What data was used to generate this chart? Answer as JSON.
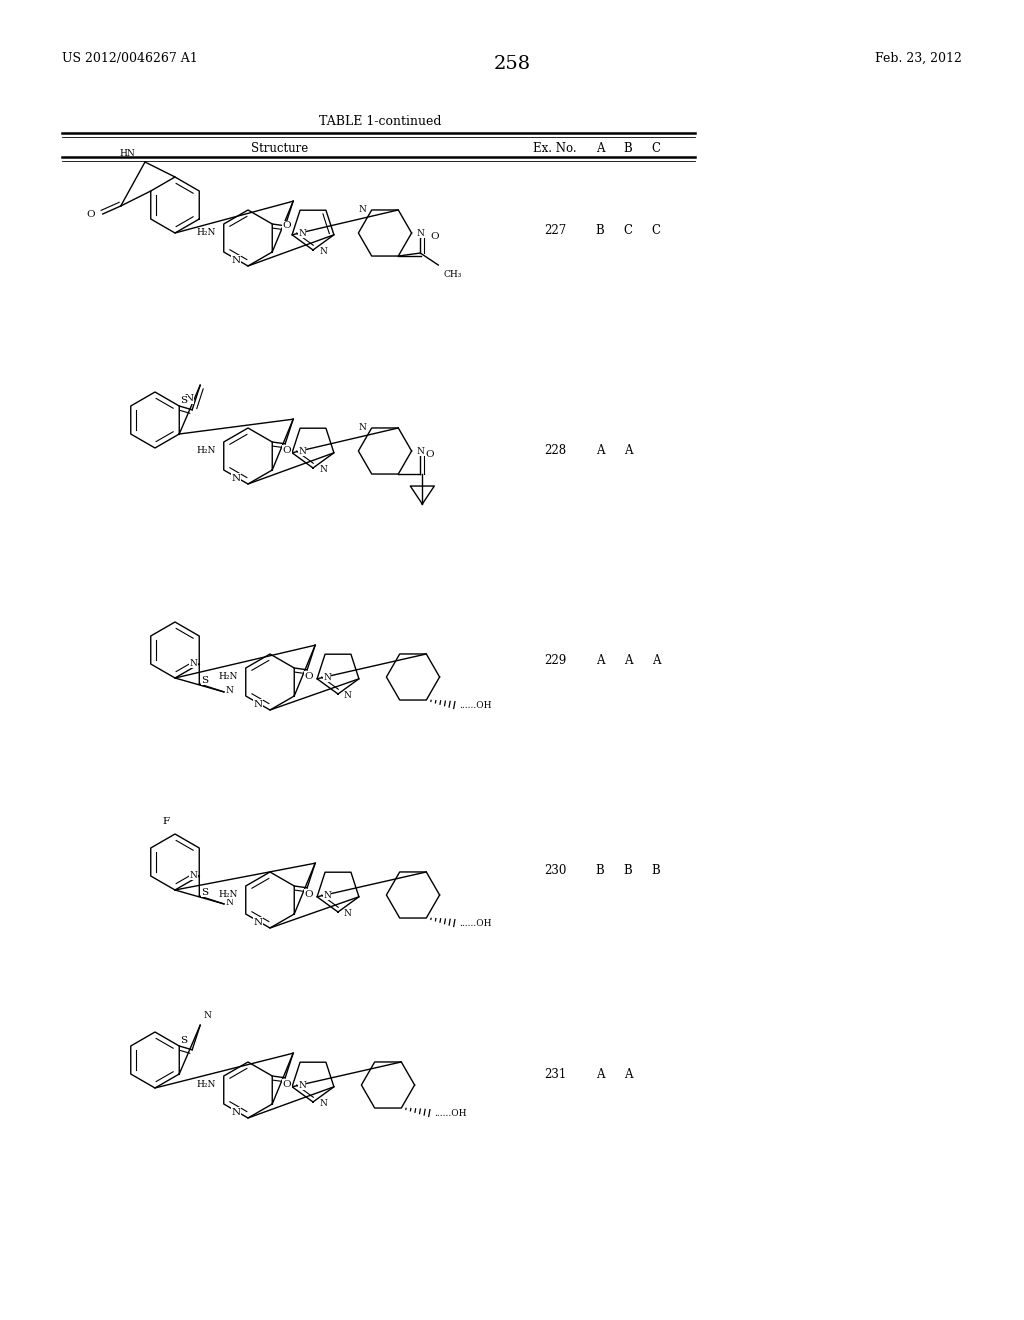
{
  "patent_number": "US 2012/0046267 A1",
  "patent_date": "Feb. 23, 2012",
  "page_number": "258",
  "table_title": "TABLE 1-continued",
  "col_structure": "Structure",
  "col_exno": "Ex. No.",
  "col_a": "A",
  "col_b": "B",
  "col_c": "C",
  "rows": [
    {
      "ex_no": "227",
      "A": "B",
      "B": "C",
      "C": "C"
    },
    {
      "ex_no": "228",
      "A": "A",
      "B": "A",
      "C": ""
    },
    {
      "ex_no": "229",
      "A": "A",
      "B": "A",
      "C": "A"
    },
    {
      "ex_no": "230",
      "A": "B",
      "B": "B",
      "C": "B"
    },
    {
      "ex_no": "231",
      "A": "A",
      "B": "A",
      "C": ""
    }
  ],
  "bg_color": "#ffffff",
  "text_color": "#000000"
}
